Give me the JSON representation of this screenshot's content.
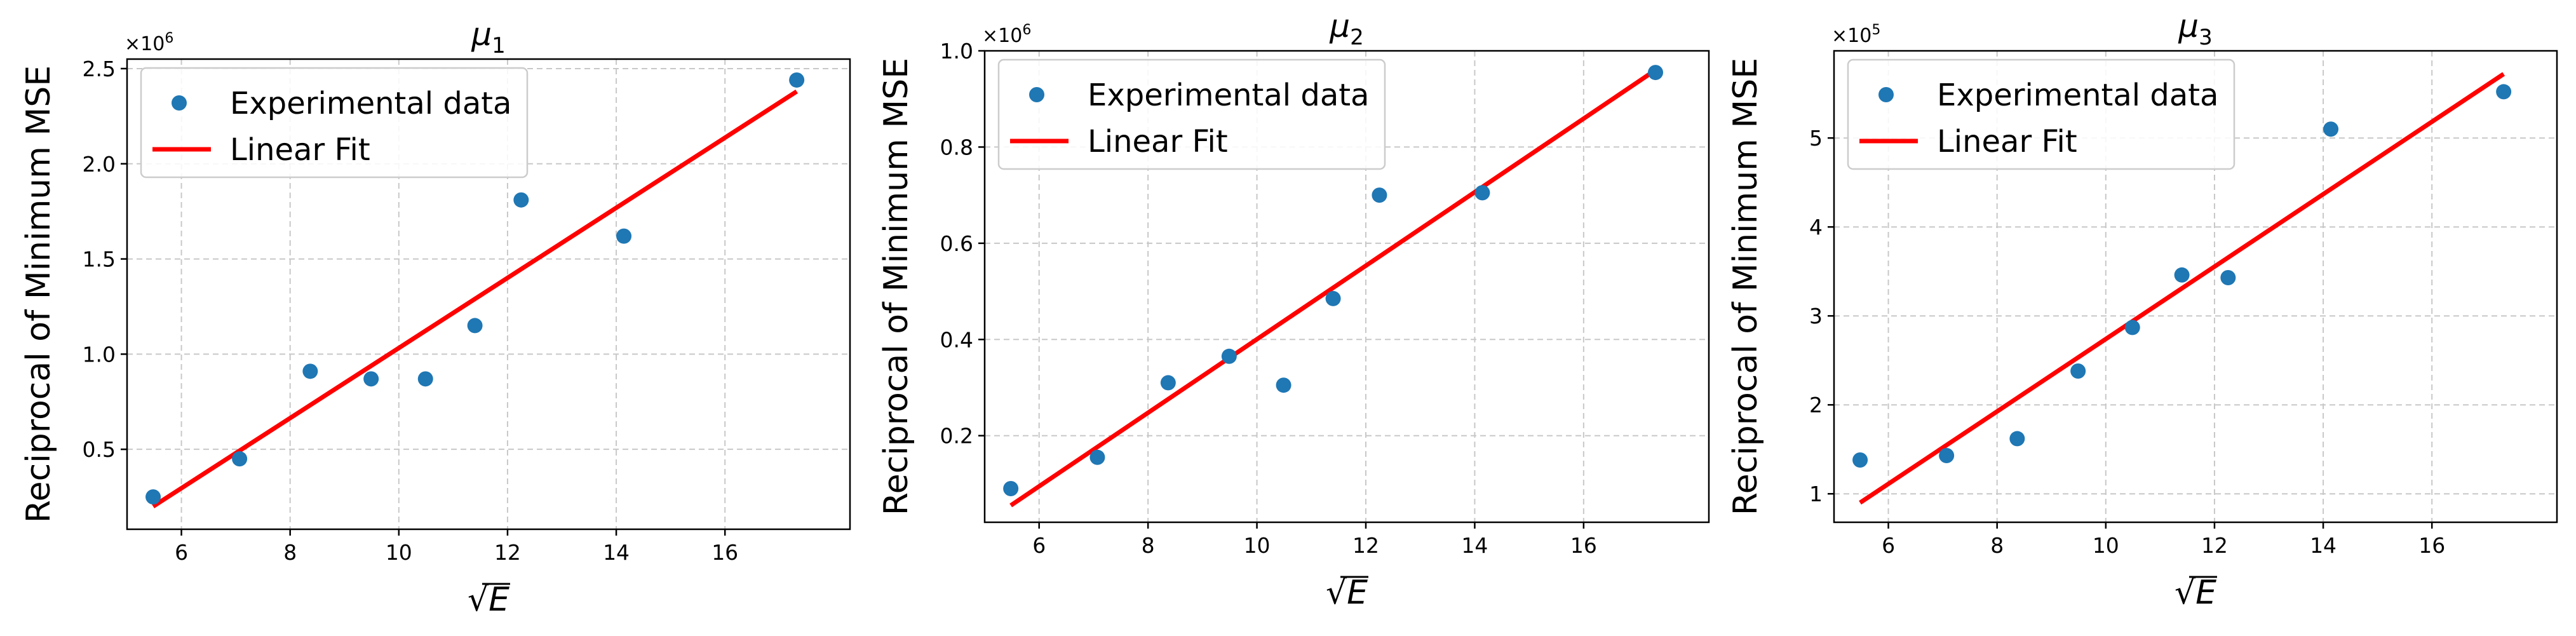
{
  "figure": {
    "background": "#ffffff"
  },
  "styles": {
    "point_color": "#1f77b4",
    "fit_color": "#ff0000",
    "grid_color": "#c8c8c8",
    "axis_color": "#000000",
    "legend_border": "#cccccc"
  },
  "chart_data": [
    {
      "type": "scatter",
      "title": "μ",
      "title_sub": "1",
      "xlabel": "√E",
      "ylabel": "Reciprocal of Minimum MSE",
      "multiplier": "×10",
      "multiplier_exp": "6",
      "xlim": [
        5.0,
        18.3
      ],
      "ylim": [
        0.08,
        2.55
      ],
      "xticks": [
        6,
        8,
        10,
        12,
        14,
        16
      ],
      "xtick_labels": [
        "6",
        "8",
        "10",
        "12",
        "14",
        "16"
      ],
      "yticks": [
        0.5,
        1.0,
        1.5,
        2.0,
        2.5
      ],
      "ytick_labels": [
        "0.5",
        "1.0",
        "1.5",
        "2.0",
        "2.5"
      ],
      "grid": true,
      "legend": {
        "position": "upper-left",
        "entries": [
          "Experimental data",
          "Linear Fit"
        ]
      },
      "series": [
        {
          "name": "Experimental data",
          "kind": "points",
          "x": [
            5.48,
            7.07,
            8.37,
            9.49,
            10.49,
            11.4,
            12.25,
            14.14,
            17.32
          ],
          "y": [
            0.25,
            0.45,
            0.91,
            0.87,
            0.87,
            1.15,
            1.81,
            1.62,
            2.44
          ]
        },
        {
          "name": "Linear Fit",
          "kind": "line",
          "x": [
            5.48,
            17.32
          ],
          "y": [
            0.2,
            2.38
          ]
        }
      ]
    },
    {
      "type": "scatter",
      "title": "μ",
      "title_sub": "2",
      "xlabel": "√E",
      "ylabel": "Reciprocal of Minimum MSE",
      "multiplier": "×10",
      "multiplier_exp": "6",
      "xlim": [
        5.0,
        18.3
      ],
      "ylim": [
        0.02,
        1.0
      ],
      "xticks": [
        6,
        8,
        10,
        12,
        14,
        16
      ],
      "xtick_labels": [
        "6",
        "8",
        "10",
        "12",
        "14",
        "16"
      ],
      "yticks": [
        0.2,
        0.4,
        0.6,
        0.8,
        1.0
      ],
      "ytick_labels": [
        "0.2",
        "0.4",
        "0.6",
        "0.8",
        "1.0"
      ],
      "grid": true,
      "legend": {
        "position": "upper-left",
        "entries": [
          "Experimental data",
          "Linear Fit"
        ]
      },
      "series": [
        {
          "name": "Experimental data",
          "kind": "points",
          "x": [
            5.48,
            7.07,
            8.37,
            9.49,
            10.49,
            11.4,
            12.25,
            14.14,
            17.32
          ],
          "y": [
            0.09,
            0.155,
            0.31,
            0.365,
            0.305,
            0.485,
            0.7,
            0.705,
            0.955
          ]
        },
        {
          "name": "Linear Fit",
          "kind": "line",
          "x": [
            5.48,
            17.32
          ],
          "y": [
            0.055,
            0.96
          ]
        }
      ]
    },
    {
      "type": "scatter",
      "title": "μ",
      "title_sub": "3",
      "xlabel": "√E",
      "ylabel": "Reciprocal of Minimum MSE",
      "multiplier": "×10",
      "multiplier_exp": "5",
      "xlim": [
        5.0,
        18.3
      ],
      "ylim": [
        0.68,
        5.98
      ],
      "xticks": [
        6,
        8,
        10,
        12,
        14,
        16
      ],
      "xtick_labels": [
        "6",
        "8",
        "10",
        "12",
        "14",
        "16"
      ],
      "yticks": [
        1,
        2,
        3,
        4,
        5
      ],
      "ytick_labels": [
        "1",
        "2",
        "3",
        "4",
        "5"
      ],
      "grid": true,
      "legend": {
        "position": "upper-left",
        "entries": [
          "Experimental data",
          "Linear Fit"
        ]
      },
      "series": [
        {
          "name": "Experimental data",
          "kind": "points",
          "x": [
            5.48,
            7.07,
            8.37,
            9.49,
            10.49,
            11.4,
            12.25,
            14.14,
            17.32
          ],
          "y": [
            1.38,
            1.43,
            1.62,
            2.38,
            2.87,
            3.46,
            3.43,
            5.1,
            5.52
          ]
        },
        {
          "name": "Linear Fit",
          "kind": "line",
          "x": [
            5.48,
            17.32
          ],
          "y": [
            0.9,
            5.72
          ]
        }
      ]
    }
  ]
}
